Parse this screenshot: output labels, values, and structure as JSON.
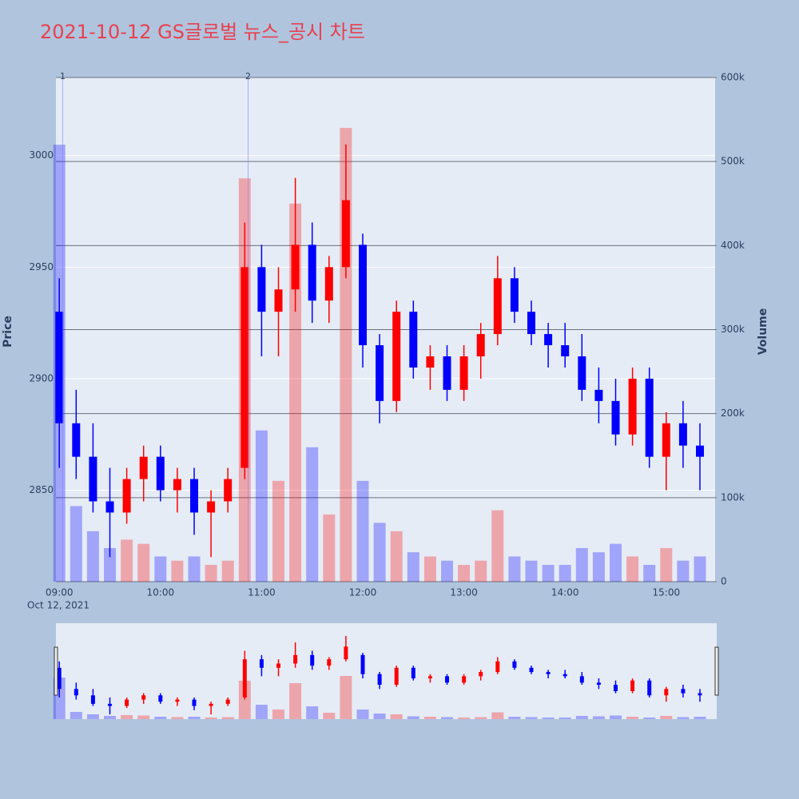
{
  "chart_data": {
    "type": "candlestick",
    "title": "2021-10-12 GS글로벌 뉴스_공시 차트",
    "y_label": "Price",
    "y2_label": "Volume",
    "x": [
      "2021-10-12 09:00",
      "2021-10-12 09:10",
      "2021-10-12 09:20",
      "2021-10-12 09:30",
      "2021-10-12 09:40",
      "2021-10-12 09:50",
      "2021-10-12 10:00",
      "2021-10-12 10:10",
      "2021-10-12 10:20",
      "2021-10-12 10:30",
      "2021-10-12 10:40",
      "2021-10-12 10:50",
      "2021-10-12 11:00",
      "2021-10-12 11:10",
      "2021-10-12 11:20",
      "2021-10-12 11:30",
      "2021-10-12 11:40",
      "2021-10-12 11:50",
      "2021-10-12 12:00",
      "2021-10-12 12:10",
      "2021-10-12 12:20",
      "2021-10-12 12:30",
      "2021-10-12 12:40",
      "2021-10-12 12:50",
      "2021-10-12 13:00",
      "2021-10-12 13:10",
      "2021-10-12 13:20",
      "2021-10-12 13:30",
      "2021-10-12 13:40",
      "2021-10-12 13:50",
      "2021-10-12 14:00",
      "2021-10-12 14:10",
      "2021-10-12 14:20",
      "2021-10-12 14:30",
      "2021-10-12 14:40",
      "2021-10-12 14:50",
      "2021-10-12 15:00",
      "2021-10-12 15:10",
      "2021-10-12 15:20"
    ],
    "open": [
      2930,
      2880,
      2865,
      2845,
      2840,
      2855,
      2865,
      2850,
      2855,
      2840,
      2845,
      2860,
      2950,
      2930,
      2940,
      2960,
      2935,
      2950,
      2960,
      2915,
      2890,
      2930,
      2905,
      2910,
      2895,
      2910,
      2920,
      2945,
      2930,
      2920,
      2915,
      2910,
      2895,
      2890,
      2875,
      2900,
      2865,
      2880,
      2870
    ],
    "high": [
      2945,
      2895,
      2880,
      2860,
      2860,
      2870,
      2870,
      2860,
      2860,
      2850,
      2860,
      2970,
      2960,
      2950,
      2990,
      2970,
      2955,
      3005,
      2965,
      2920,
      2935,
      2935,
      2915,
      2915,
      2915,
      2925,
      2955,
      2950,
      2935,
      2925,
      2925,
      2920,
      2905,
      2900,
      2905,
      2905,
      2885,
      2890,
      2880
    ],
    "low": [
      2860,
      2855,
      2840,
      2820,
      2835,
      2845,
      2845,
      2840,
      2830,
      2820,
      2840,
      2855,
      2910,
      2910,
      2930,
      2925,
      2925,
      2945,
      2905,
      2880,
      2885,
      2900,
      2895,
      2890,
      2890,
      2900,
      2915,
      2925,
      2915,
      2905,
      2905,
      2890,
      2880,
      2870,
      2870,
      2860,
      2850,
      2860,
      2850
    ],
    "close": [
      2880,
      2865,
      2845,
      2840,
      2855,
      2865,
      2850,
      2855,
      2840,
      2845,
      2855,
      2950,
      2930,
      2940,
      2960,
      2935,
      2950,
      2980,
      2915,
      2890,
      2930,
      2905,
      2910,
      2895,
      2910,
      2920,
      2945,
      2930,
      2920,
      2915,
      2910,
      2895,
      2890,
      2875,
      2900,
      2865,
      2880,
      2870,
      2865
    ],
    "volume": [
      520000,
      90000,
      60000,
      40000,
      50000,
      45000,
      30000,
      25000,
      30000,
      20000,
      25000,
      480000,
      180000,
      120000,
      450000,
      160000,
      80000,
      540000,
      120000,
      70000,
      60000,
      35000,
      30000,
      25000,
      20000,
      25000,
      85000,
      30000,
      25000,
      20000,
      20000,
      40000,
      35000,
      45000,
      30000,
      20000,
      40000,
      25000,
      30000
    ],
    "increasing_color": "#ff0000",
    "decreasing_color": "#0000ff",
    "xlim": [
      "2021-10-12 08:58",
      "2021-10-12 15:29"
    ],
    "xticks": [
      {
        "value": "2021-10-12 09:00",
        "label": "09:00"
      },
      {
        "value": "2021-10-12 10:00",
        "label": "10:00"
      },
      {
        "value": "2021-10-12 11:00",
        "label": "11:00"
      },
      {
        "value": "2021-10-12 12:00",
        "label": "12:00"
      },
      {
        "value": "2021-10-12 13:00",
        "label": "13:00"
      },
      {
        "value": "2021-10-12 14:00",
        "label": "14:00"
      },
      {
        "value": "2021-10-12 15:00",
        "label": "15:00"
      }
    ],
    "x_date_label": "Oct 12, 2021",
    "ylim": [
      2809,
      3035
    ],
    "yticks": [
      2850,
      2900,
      2950,
      3000
    ],
    "y2lim": [
      0,
      600000
    ],
    "y2ticks": [
      0,
      {
        "value": 100000,
        "label": "100k"
      },
      {
        "value": 200000,
        "label": "200k"
      },
      {
        "value": 300000,
        "label": "300k"
      },
      {
        "value": 400000,
        "label": "400k"
      },
      {
        "value": 500000,
        "label": "500k"
      },
      {
        "value": 600000,
        "label": "600k"
      }
    ],
    "vlines": [
      {
        "x": "2021-10-12 09:02",
        "label": "1"
      },
      {
        "x": "2021-10-12 10:52",
        "label": "2"
      }
    ],
    "grid": true,
    "rangeslider": true
  }
}
